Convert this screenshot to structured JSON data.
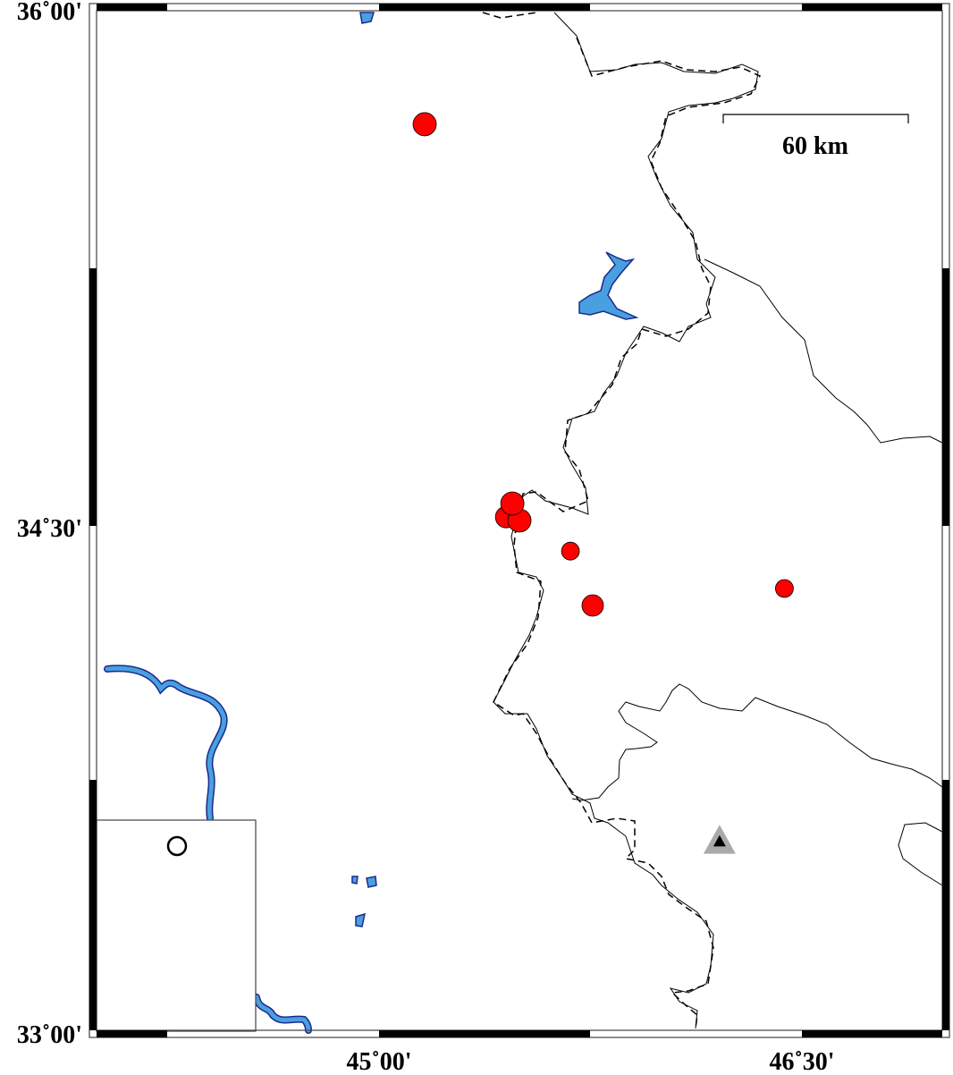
{
  "map": {
    "extent": {
      "lon": [
        44.0,
        47.0
      ],
      "lat": [
        33.0,
        36.0
      ]
    },
    "x_ticks": [
      {
        "value": 45.0,
        "label": "45˚00'"
      },
      {
        "value": 46.5,
        "label": "46˚30'"
      }
    ],
    "y_ticks": [
      {
        "value": 36.0,
        "label": "36˚00'"
      },
      {
        "value": 34.5,
        "label": "34˚30'"
      },
      {
        "value": 33.0,
        "label": "33˚00'"
      }
    ],
    "scale_bar": {
      "label": "60 km",
      "length_km": 60
    },
    "colors": {
      "event": "#ff0000",
      "water": "#4a9fe0",
      "water_outline": "#1a2a8a",
      "station_outer": "#aaaaaa",
      "station_inner": "#000000"
    },
    "events": [
      {
        "lon": 45.164,
        "lat": 35.666,
        "size": "large"
      },
      {
        "lon": 45.453,
        "lat": 34.51,
        "size": "medium"
      },
      {
        "lon": 45.5,
        "lat": 34.5,
        "size": "large"
      },
      {
        "lon": 45.475,
        "lat": 34.55,
        "size": "large"
      },
      {
        "lon": 45.681,
        "lat": 34.41,
        "size": "small"
      },
      {
        "lon": 45.76,
        "lat": 34.25,
        "size": "medium"
      },
      {
        "lon": 46.44,
        "lat": 34.3,
        "size": "small"
      }
    ],
    "station": {
      "lon": 46.21,
      "lat": 33.555,
      "icon": "triangle-station-icon"
    },
    "inset": {
      "icon": "hollow-circle-icon"
    }
  }
}
